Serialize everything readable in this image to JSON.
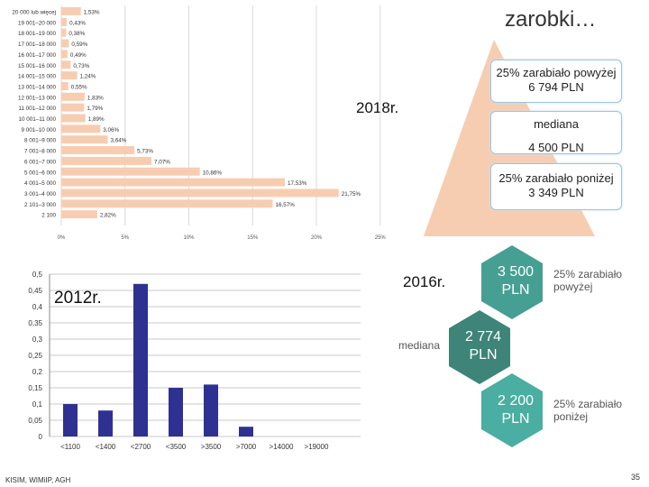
{
  "slide": {
    "title": "zarobki…",
    "footer": "KISIM, WIMiIP, AGH",
    "page_number": "35",
    "accent_2018": "#f7cdb2",
    "accent_2012": "#2e3192",
    "accent_2016": "#4a9e8e"
  },
  "chart_data": [
    {
      "type": "bar",
      "label": "2018r.",
      "orientation": "horizontal",
      "categories": [
        "20 000 lub więcej",
        "19 001–20 000",
        "18 001–19 000",
        "17 001–18 000",
        "16 001–17 000",
        "15 001–16 000",
        "14 001–15 000",
        "13 001–14 000",
        "12 001–13 000",
        "11 001–12 000",
        "10 001–11 000",
        "9 001–10 000",
        "8 001–9 000",
        "7 001–8 000",
        "6 001–7 000",
        "5 001–6 000",
        "4 001–5 000",
        "3 001–4 000",
        "2 101–3 000",
        "2 100"
      ],
      "values": [
        1.53,
        0.43,
        0.38,
        0.59,
        0.49,
        0.73,
        1.24,
        0.55,
        1.83,
        1.79,
        1.89,
        3.06,
        3.64,
        5.73,
        7.07,
        10.86,
        17.53,
        21.75,
        16.57,
        2.82
      ],
      "value_labels": [
        "1,53%",
        "0,43%",
        "0,38%",
        "0,59%",
        "0,49%",
        "0,73%",
        "1,24%",
        "0,55%",
        "1,83%",
        "1,79%",
        "1,89%",
        "3,06%",
        "3,64%",
        "5,73%",
        "7,07%",
        "10,86%",
        "17,53%",
        "21,75%",
        "16,57%",
        "2,82%"
      ],
      "xticks": [
        "0%",
        "5%",
        "10%",
        "15%",
        "20%",
        "25%"
      ],
      "xlim": [
        0,
        25
      ],
      "grid": true
    },
    {
      "type": "bar",
      "label": "2012r.",
      "categories": [
        "<1100",
        "<1400",
        "<2700",
        "<3500",
        ">3500",
        ">7000",
        ">14000",
        ">19000"
      ],
      "values": [
        0.1,
        0.08,
        0.47,
        0.15,
        0.16,
        0.03,
        0,
        0
      ],
      "yticks": [
        "0",
        "0,05",
        "0,1",
        "0,15",
        "0,2",
        "0,25",
        "0,3",
        "0,35",
        "0,4",
        "0,45",
        "0,5"
      ],
      "ylim": [
        0,
        0.5
      ],
      "grid": true
    }
  ],
  "pyramid_2018": {
    "top": "25% zarabiało powyżej",
    "top_value": "6 794 PLN",
    "middle": "mediana",
    "middle_value": "4 500 PLN",
    "bottom": "25% zarabiało poniżej",
    "bottom_value": "3 349 PLN"
  },
  "hexagons_2016": {
    "top_value": "3 500",
    "top_unit": "PLN",
    "top_label_1": "25% zarabiało",
    "top_label_2": "powyżej",
    "middle_value": "2 774",
    "middle_unit": "PLN",
    "middle_label": "mediana",
    "bottom_value": "2 200",
    "bottom_unit": "PLN",
    "bottom_label_1": "25% zarabiało",
    "bottom_label_2": "poniżej"
  }
}
